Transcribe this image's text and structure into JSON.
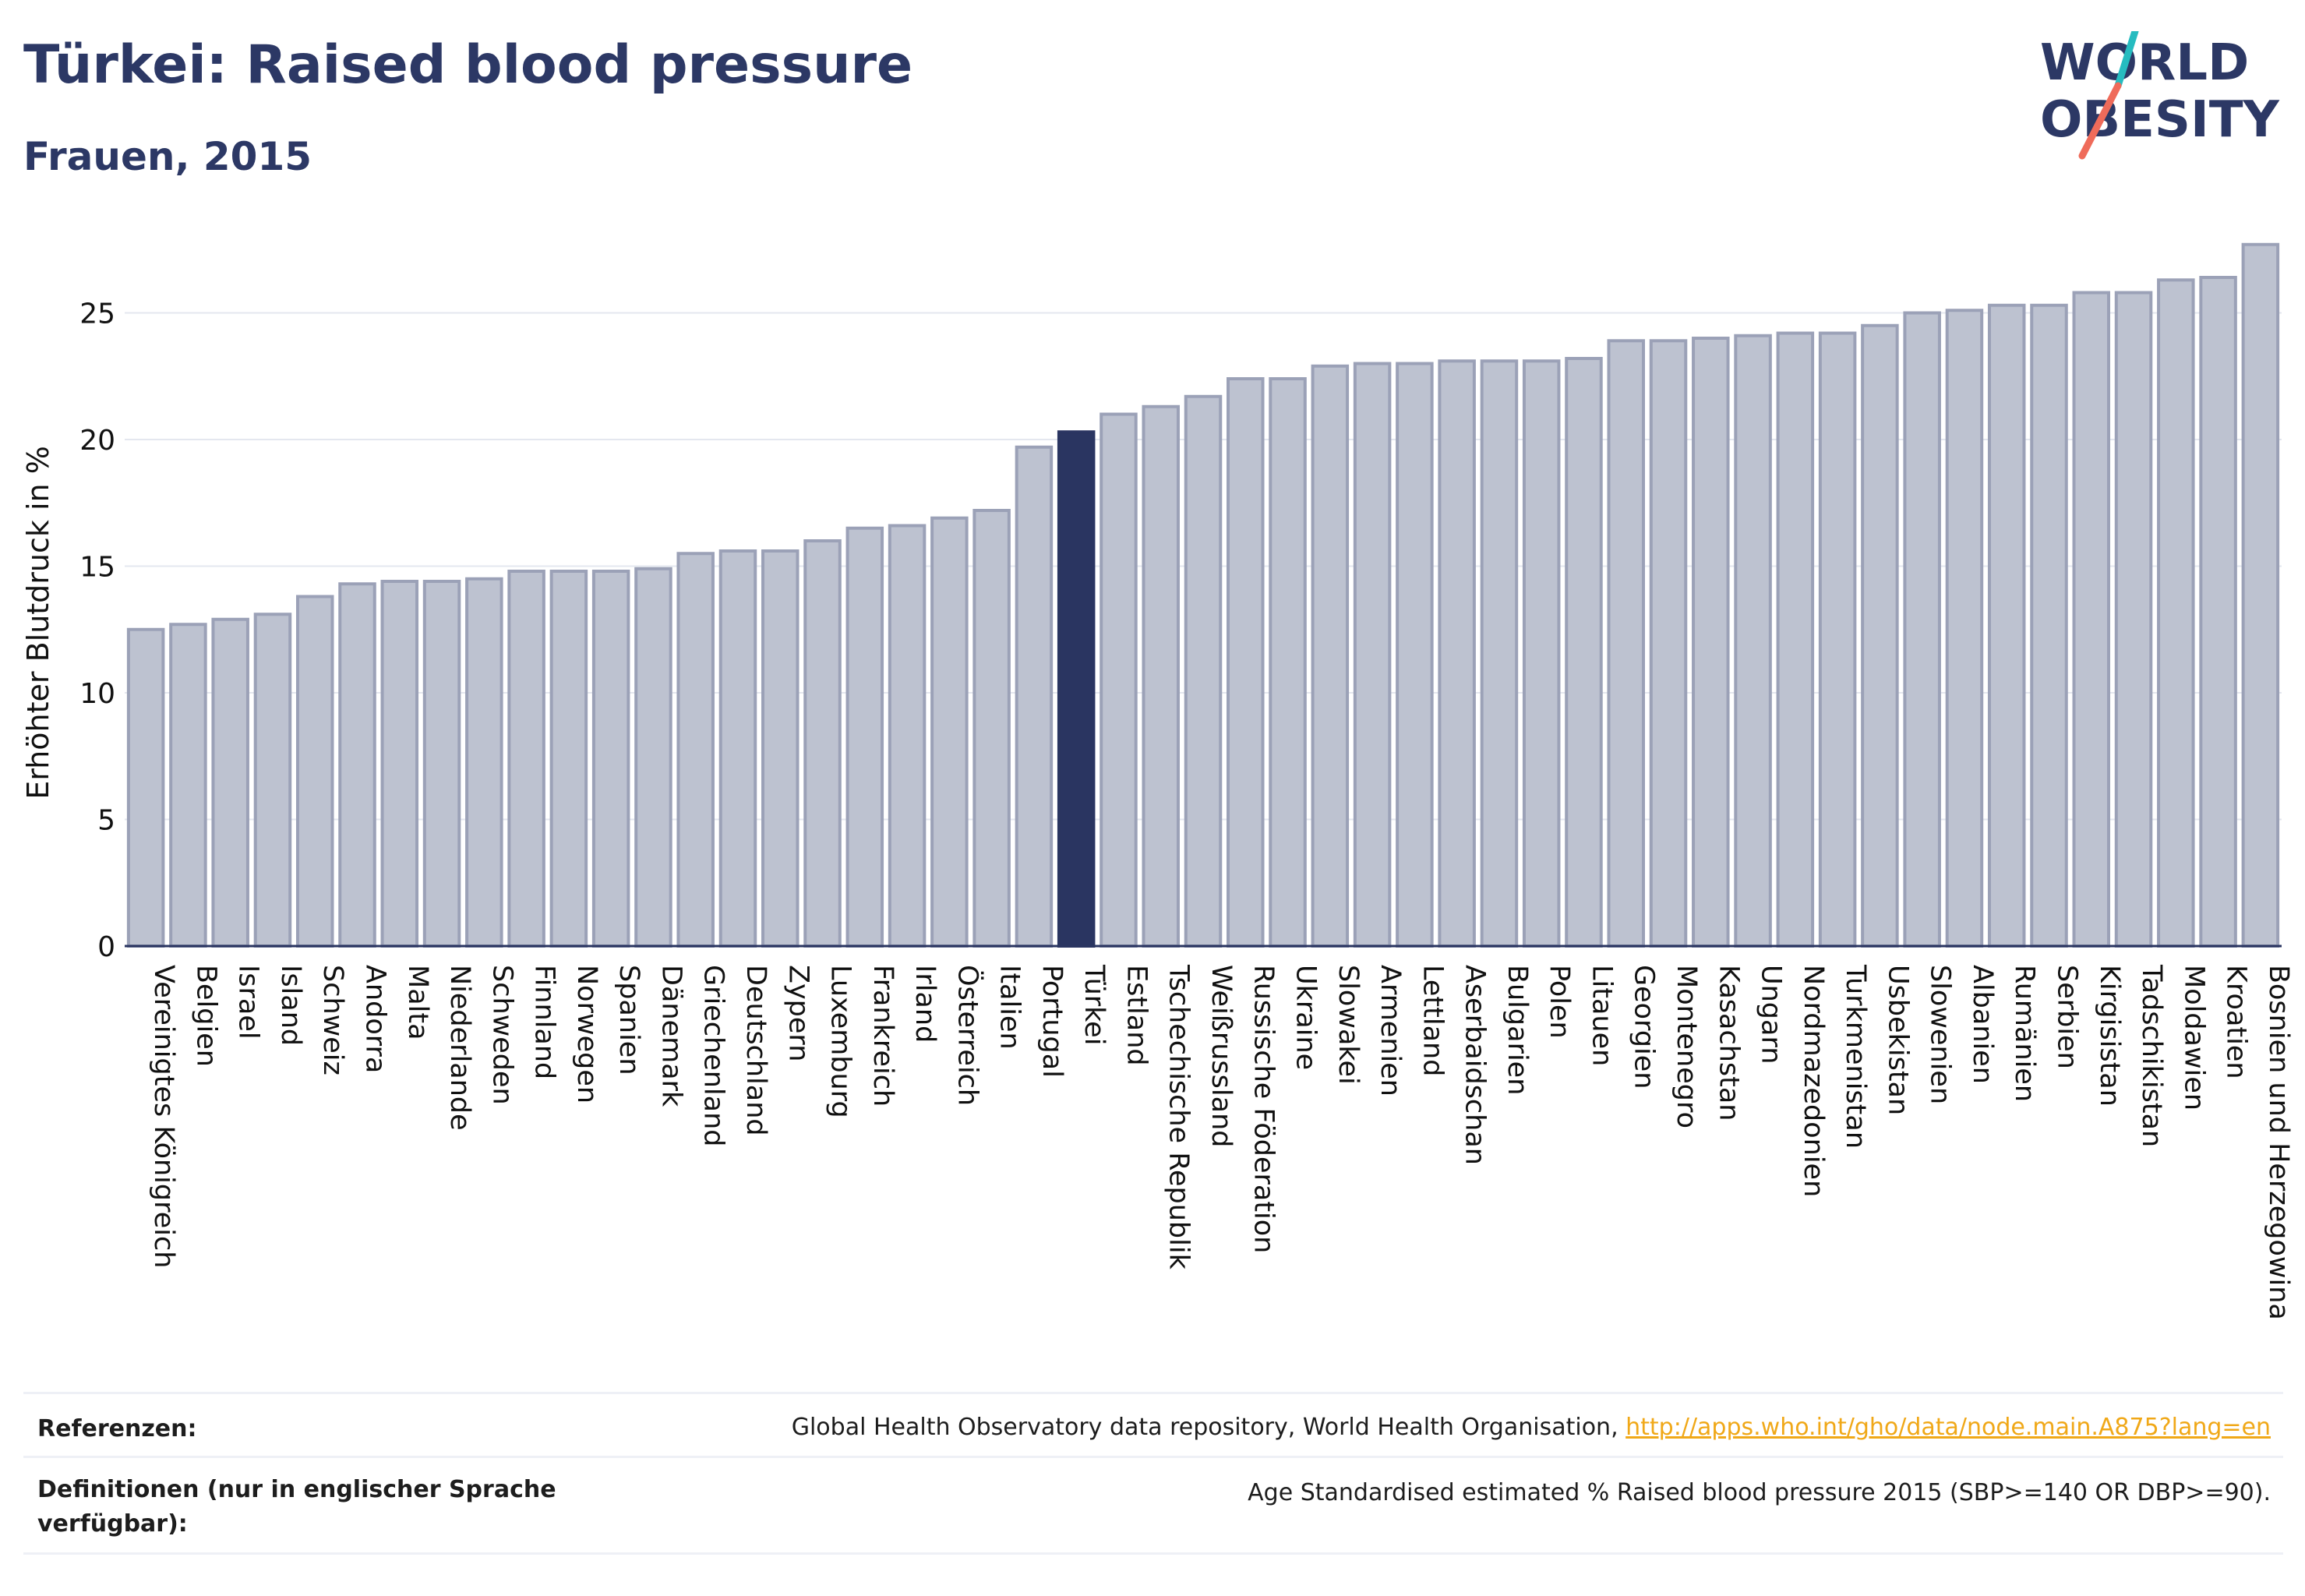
{
  "header": {
    "title": "Türkei: Raised blood pressure",
    "subtitle": "Frauen, 2015"
  },
  "logo": {
    "line1": "WORLD",
    "line2": "OBESITY"
  },
  "chart_data": {
    "type": "bar",
    "ylabel": "Erhöhter Blutdruck in %",
    "ylim": [
      0,
      28
    ],
    "yticks": [
      0,
      5,
      10,
      15,
      20,
      25
    ],
    "grid": true,
    "highlight": "Türkei",
    "categories": [
      "Vereinigtes Königreich",
      "Belgien",
      "Israel",
      "Island",
      "Schweiz",
      "Andorra",
      "Malta",
      "Niederlande",
      "Schweden",
      "Finnland",
      "Norwegen",
      "Spanien",
      "Dänemark",
      "Griechenland",
      "Deutschland",
      "Zypern",
      "Luxemburg",
      "Frankreich",
      "Irland",
      "Österreich",
      "Italien",
      "Portugal",
      "Türkei",
      "Estland",
      "Tschechische Republik",
      "Weißrussland",
      "Russische Föderation",
      "Ukraine",
      "Slowakei",
      "Armenien",
      "Lettland",
      "Aserbaidschan",
      "Bulgarien",
      "Polen",
      "Litauen",
      "Georgien",
      "Montenegro",
      "Kasachstan",
      "Ungarn",
      "Nordmazedonien",
      "Turkmenistan",
      "Usbekistan",
      "Slowenien",
      "Albanien",
      "Rumänien",
      "Serbien",
      "Kirgisistan",
      "Tadschikistan",
      "Moldawien",
      "Kroatien",
      "Bosnien und Herzegowina"
    ],
    "values": [
      12.5,
      12.7,
      12.9,
      13.1,
      13.8,
      14.3,
      14.4,
      14.4,
      14.5,
      14.8,
      14.8,
      14.8,
      14.9,
      15.5,
      15.6,
      15.6,
      16.0,
      16.5,
      16.6,
      16.9,
      17.2,
      19.7,
      20.3,
      21.0,
      21.3,
      21.7,
      22.4,
      22.4,
      22.9,
      23.0,
      23.0,
      23.1,
      23.1,
      23.1,
      23.2,
      23.9,
      23.9,
      24.0,
      24.1,
      24.2,
      24.2,
      24.5,
      25.0,
      25.1,
      25.3,
      25.3,
      25.8,
      25.8,
      26.3,
      26.4,
      27.7
    ]
  },
  "colors": {
    "bar": "#bdc2d0",
    "bar_stroke": "#9ba1b7",
    "highlight": "#2a3561",
    "grid": "#e4e7ef",
    "axis": "#2a3561",
    "logo_text": "#2c3865",
    "logo_slash_teal": "#26bcc0",
    "logo_slash_coral": "#ef6b5a",
    "link": "#f0a818"
  },
  "footer": {
    "references_label": "Referenzen:",
    "references_text": "Global Health Observatory data repository, World Health Organisation, ",
    "references_link": "http://apps.who.int/gho/data/node.main.A875?lang=en",
    "definitions_label": "Definitionen (nur in englischer Sprache verfügbar):",
    "definitions_text": "Age Standardised estimated % Raised blood pressure 2015 (SBP>=140 OR DBP>=90)."
  }
}
